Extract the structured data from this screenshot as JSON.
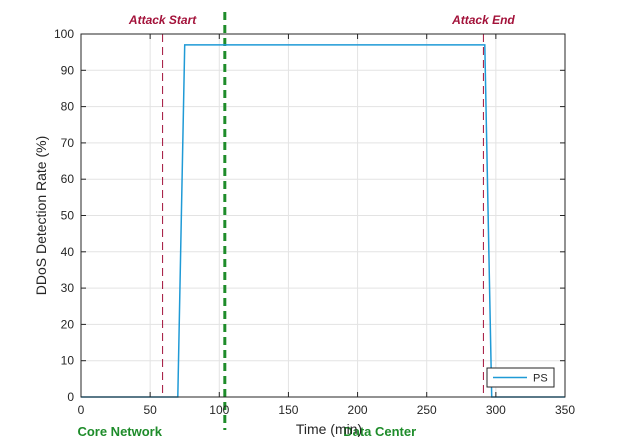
{
  "chart_data": {
    "type": "line",
    "xlabel": "Time (min)",
    "ylabel": "DDoS Detection Rate (%)",
    "xlim": [
      0,
      350
    ],
    "ylim": [
      0,
      100
    ],
    "xticks": [
      0,
      50,
      100,
      150,
      200,
      250,
      300,
      350
    ],
    "yticks": [
      0,
      10,
      20,
      30,
      40,
      50,
      60,
      70,
      80,
      90,
      100
    ],
    "grid": true,
    "legend_position": "bottom-right",
    "series": [
      {
        "name": "PS",
        "color": "#1f9ad6",
        "x": [
          0,
          70,
          75,
          292,
          297,
          350
        ],
        "y": [
          0,
          0,
          97,
          97,
          0,
          0
        ]
      }
    ],
    "annotations": [
      {
        "label": "Attack Start",
        "x": 59,
        "color": "#a3123a",
        "style": "dashed-thin",
        "label_position": "top"
      },
      {
        "label": "Attack End",
        "x": 291,
        "color": "#a3123a",
        "style": "dashed-thin",
        "label_position": "top"
      },
      {
        "label": "",
        "x": 104,
        "color": "#1e8c2a",
        "style": "dashed-thick",
        "label_position": "none"
      }
    ],
    "regions": [
      {
        "label": "Core Network",
        "x": 28,
        "color": "#1e8c2a"
      },
      {
        "label": "Data Center",
        "x": 216,
        "color": "#1e8c2a"
      }
    ]
  }
}
